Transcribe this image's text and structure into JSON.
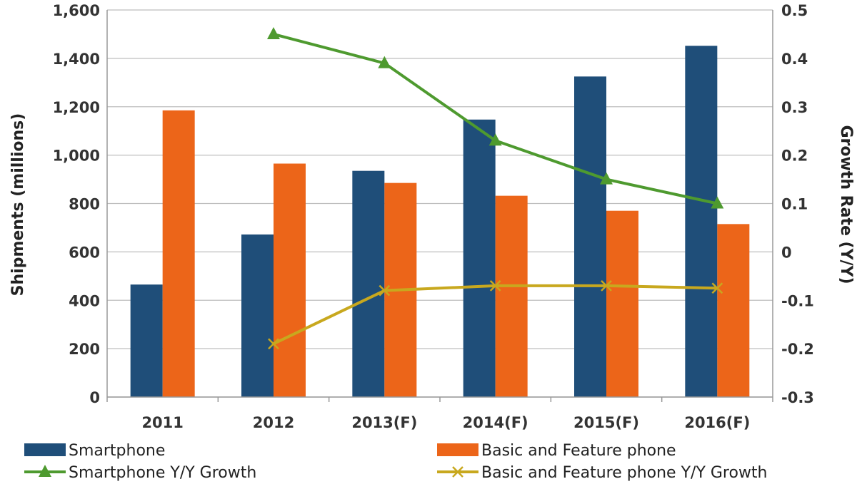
{
  "chart_data": {
    "type": "bar",
    "categories": [
      "2011",
      "2012",
      "2013(F)",
      "2014(F)",
      "2015(F)",
      "2016(F)"
    ],
    "series": [
      {
        "name": "Smartphone",
        "kind": "bar",
        "axis": "left",
        "color": "#1f4e79",
        "values": [
          465,
          672,
          935,
          1147,
          1325,
          1452
        ]
      },
      {
        "name": "Basic and Feature phone",
        "kind": "bar",
        "axis": "left",
        "color": "#ec6519",
        "values": [
          1185,
          965,
          885,
          832,
          770,
          715
        ]
      },
      {
        "name": "Smartphone Y/Y Growth",
        "kind": "line",
        "marker": "triangle",
        "axis": "right",
        "color": "#4e9a2f",
        "values": [
          null,
          0.45,
          0.39,
          0.23,
          0.15,
          0.1
        ]
      },
      {
        "name": "Basic and Feature phone Y/Y Growth",
        "kind": "line",
        "marker": "x",
        "axis": "right",
        "color": "#c8a81e",
        "values": [
          null,
          -0.19,
          -0.08,
          -0.07,
          -0.07,
          -0.075
        ]
      }
    ],
    "ylabel": "Shipments (millions)",
    "y2label": "Growth Rate (Y/Y)",
    "ylim": [
      0,
      1600
    ],
    "y2lim": [
      -0.3,
      0.5
    ],
    "yticks": [
      "0",
      "200",
      "400",
      "600",
      "800",
      "1,000",
      "1,200",
      "1,400",
      "1,600"
    ],
    "y2ticks": [
      "-0.3",
      "-0.2",
      "-0.1",
      "0",
      "0.1",
      "0.2",
      "0.3",
      "0.4",
      "0.5"
    ],
    "grid": true,
    "legend": "bottom"
  }
}
